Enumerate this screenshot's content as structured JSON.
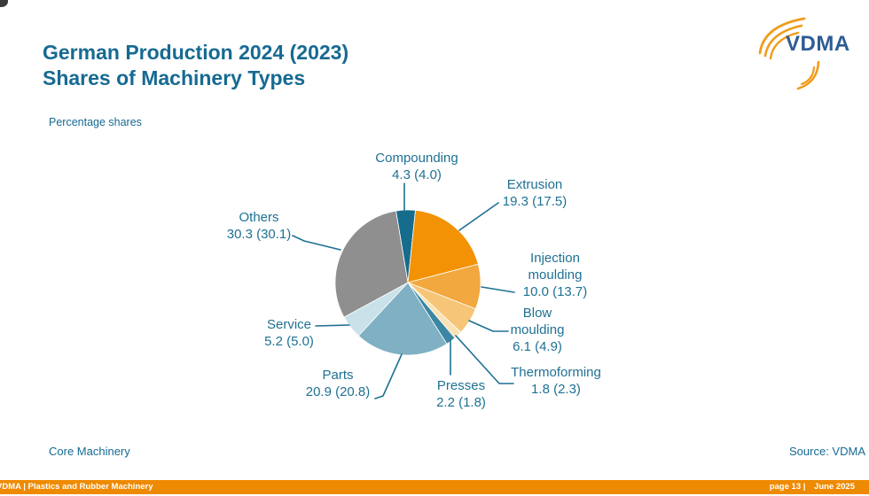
{
  "slide": {
    "title_line1": "German Production 2024 (2023)",
    "title_line2": "Shares of Machinery Types",
    "subtitle": "Percentage shares",
    "footnote": "Core Machinery",
    "source": "Source: VDMA"
  },
  "logo": {
    "text": "VDMA",
    "blue": "#2E5C93",
    "orange": "#F09C1C"
  },
  "footer_bar": {
    "left": "VDMA | Plastics and Rubber Machinery",
    "page": "page 13 |",
    "date": "June 2025",
    "background": "#EE8A00"
  },
  "colors": {
    "heading": "#166A92",
    "label": "#1E7193",
    "leader_line": "#1E7193"
  },
  "chart_data": {
    "type": "pie",
    "title": "German Production 2024 (2023) - Shares of Machinery Types",
    "unit": "percentage shares",
    "legend_position": "none",
    "start_angle_deg": -9.5,
    "categories": [
      "Compounding",
      "Extrusion",
      "Injection moulding",
      "Blow moulding",
      "Thermoforming",
      "Presses",
      "Parts",
      "Service",
      "Others"
    ],
    "series": [
      {
        "name": "2024",
        "values": [
          4.3,
          19.3,
          10.0,
          6.1,
          1.8,
          2.2,
          20.9,
          5.2,
          30.3
        ]
      },
      {
        "name": "2023",
        "values": [
          4.0,
          17.5,
          13.7,
          4.9,
          2.3,
          1.8,
          20.8,
          5.0,
          30.1
        ]
      }
    ],
    "slice_colors": [
      "#156C8C",
      "#F29204",
      "#F2A83E",
      "#F6C577",
      "#FAE2B4",
      "#3B87A3",
      "#7FB0C3",
      "#C9E1E9",
      "#8F8F8F"
    ],
    "labels": [
      {
        "key": "compounding",
        "name_lines": [
          "Compounding"
        ],
        "display": "4.3 (4.0)"
      },
      {
        "key": "extrusion",
        "name_lines": [
          "Extrusion"
        ],
        "display": "19.3 (17.5)"
      },
      {
        "key": "injection-moulding",
        "name_lines": [
          "Injection",
          "moulding"
        ],
        "display": "10.0 (13.7)"
      },
      {
        "key": "blow-moulding",
        "name_lines": [
          "Blow",
          "moulding"
        ],
        "display": "6.1 (4.9)"
      },
      {
        "key": "thermoforming",
        "name_lines": [
          "Thermoforming"
        ],
        "display": "1.8 (2.3)"
      },
      {
        "key": "presses",
        "name_lines": [
          "Presses"
        ],
        "display": "2.2 (1.8)"
      },
      {
        "key": "parts",
        "name_lines": [
          "Parts"
        ],
        "display": "20.9 (20.8)"
      },
      {
        "key": "service",
        "name_lines": [
          "Service"
        ],
        "display": "5.2 (5.0)"
      },
      {
        "key": "others",
        "name_lines": [
          "Others"
        ],
        "display": "30.3 (30.1)"
      }
    ]
  }
}
